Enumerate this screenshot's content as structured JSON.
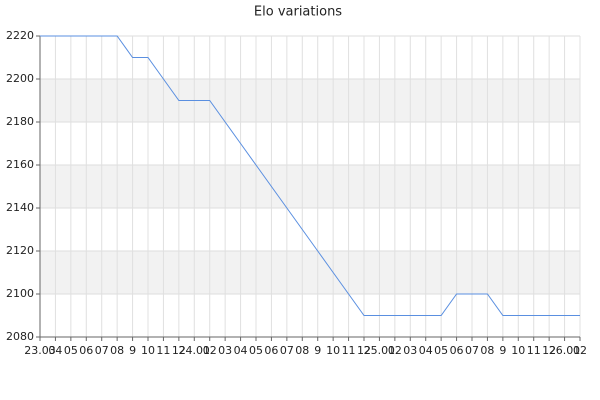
{
  "chart_data": {
    "type": "line",
    "title": "Elo variations",
    "categories": [
      "23.03",
      "04",
      "05",
      "06",
      "07",
      "08",
      "9",
      "10",
      "11",
      "12",
      "24.01",
      "02",
      "03",
      "04",
      "05",
      "06",
      "07",
      "08",
      "9",
      "10",
      "11",
      "12",
      "25.01",
      "02",
      "03",
      "04",
      "05",
      "06",
      "07",
      "08",
      "9",
      "10",
      "11",
      "12",
      "26.01",
      "02"
    ],
    "values": [
      2220,
      2220,
      2220,
      2220,
      2220,
      2220,
      2210,
      2210,
      2200,
      2190,
      2190,
      2190,
      2180,
      2170,
      2160,
      2150,
      2140,
      2130,
      2120,
      2110,
      2100,
      2090,
      2090,
      2090,
      2090,
      2090,
      2090,
      2100,
      2100,
      2100,
      2090,
      2090,
      2090,
      2090,
      2090,
      2090
    ],
    "color": "#5a8fe0",
    "ylim": [
      2080,
      2220
    ],
    "yticks": [
      2080,
      2100,
      2120,
      2140,
      2160,
      2180,
      2200,
      2220
    ],
    "grid": true
  }
}
